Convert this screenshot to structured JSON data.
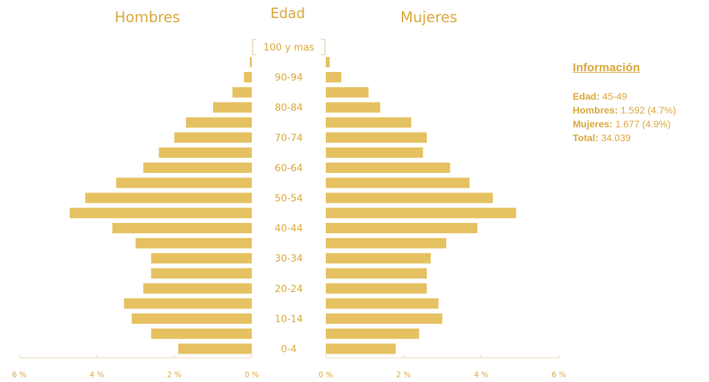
{
  "chart_data": {
    "type": "bar",
    "orientation": "horizontal-population-pyramid",
    "left_title": "Hombres",
    "center_title": "Edad",
    "right_title": "Mujeres",
    "categories": [
      "0-4",
      "5-9",
      "10-14",
      "15-19",
      "20-24",
      "25-29",
      "30-34",
      "35-39",
      "40-44",
      "45-49",
      "50-54",
      "55-59",
      "60-64",
      "65-69",
      "70-74",
      "75-79",
      "80-84",
      "85-89",
      "90-94",
      "95-99",
      "100 y mas"
    ],
    "category_labels_shown": [
      "0-4",
      "",
      "10-14",
      "",
      "20-24",
      "",
      "30-34",
      "",
      "40-44",
      "",
      "50-54",
      "",
      "60-64",
      "",
      "70-74",
      "",
      "80-84",
      "",
      "90-94",
      "",
      "100 y mas"
    ],
    "series": [
      {
        "name": "Hombres",
        "values": [
          1.9,
          2.6,
          3.1,
          3.3,
          2.8,
          2.6,
          2.6,
          3.0,
          3.6,
          4.7,
          4.3,
          3.5,
          2.8,
          2.4,
          2.0,
          1.7,
          1.0,
          0.5,
          0.2,
          0.05,
          0.0
        ]
      },
      {
        "name": "Mujeres",
        "values": [
          1.8,
          2.4,
          3.0,
          2.9,
          2.6,
          2.6,
          2.7,
          3.1,
          3.9,
          4.9,
          4.3,
          3.7,
          3.2,
          2.5,
          2.6,
          2.2,
          1.4,
          1.1,
          0.4,
          0.1,
          0.0
        ]
      }
    ],
    "xlim": [
      0,
      6
    ],
    "x_ticks": [
      "6 %",
      "4 %",
      "2 %",
      "0 %",
      "0 %",
      "2 %",
      "4 %",
      "6 %"
    ],
    "bar_color": "#e5c161",
    "text_color": "#d9a73a"
  },
  "info": {
    "title": "Información",
    "edad_label": "Edad:",
    "edad_value": "45-49",
    "hombres_label": "Hombres:",
    "hombres_value": "1.592 (4.7%)",
    "mujeres_label": "Mujeres:",
    "mujeres_value": "1.677 (4.9%)",
    "total_label": "Total:",
    "total_value": "34.039"
  }
}
